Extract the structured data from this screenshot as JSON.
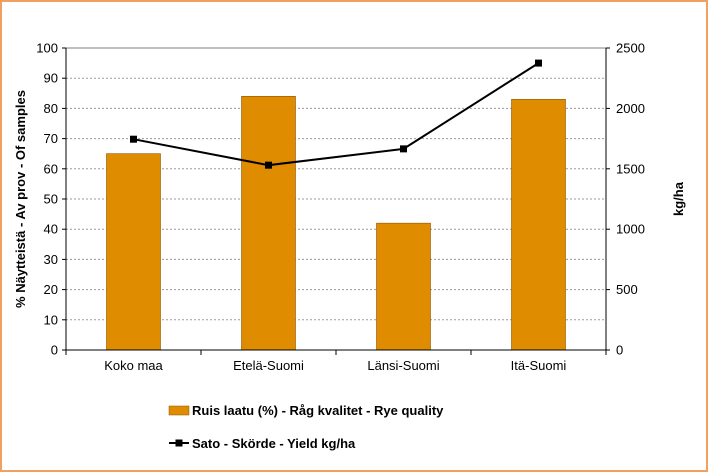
{
  "chart_data": {
    "type": "bar",
    "categories": [
      "Koko maa",
      "Etelä-Suomi",
      "Länsi-Suomi",
      "Itä-Suomi"
    ],
    "series": [
      {
        "name": "Ruis laatu (%) - Råg kvalitet - Rye quality",
        "type": "bar",
        "axis": "left",
        "values": [
          65,
          84,
          42,
          83
        ],
        "color": "#e08c00"
      },
      {
        "name": "Sato - Skörde - Yield kg/ha",
        "type": "line",
        "axis": "right",
        "values": [
          1745,
          1530,
          1665,
          2375
        ],
        "color": "#000000"
      }
    ],
    "ylabel": "% Näytteistä - Av prov - Of samples",
    "y2label": "kg/ha",
    "ylim": [
      0,
      100
    ],
    "y2lim": [
      0,
      2500
    ],
    "yticks": [
      "0",
      "10",
      "20",
      "30",
      "40",
      "50",
      "60",
      "70",
      "80",
      "90",
      "100"
    ],
    "y2ticks": [
      "0",
      "500",
      "1000",
      "1500",
      "2000",
      "2500"
    ],
    "grid": true,
    "legend_position": "bottom"
  }
}
